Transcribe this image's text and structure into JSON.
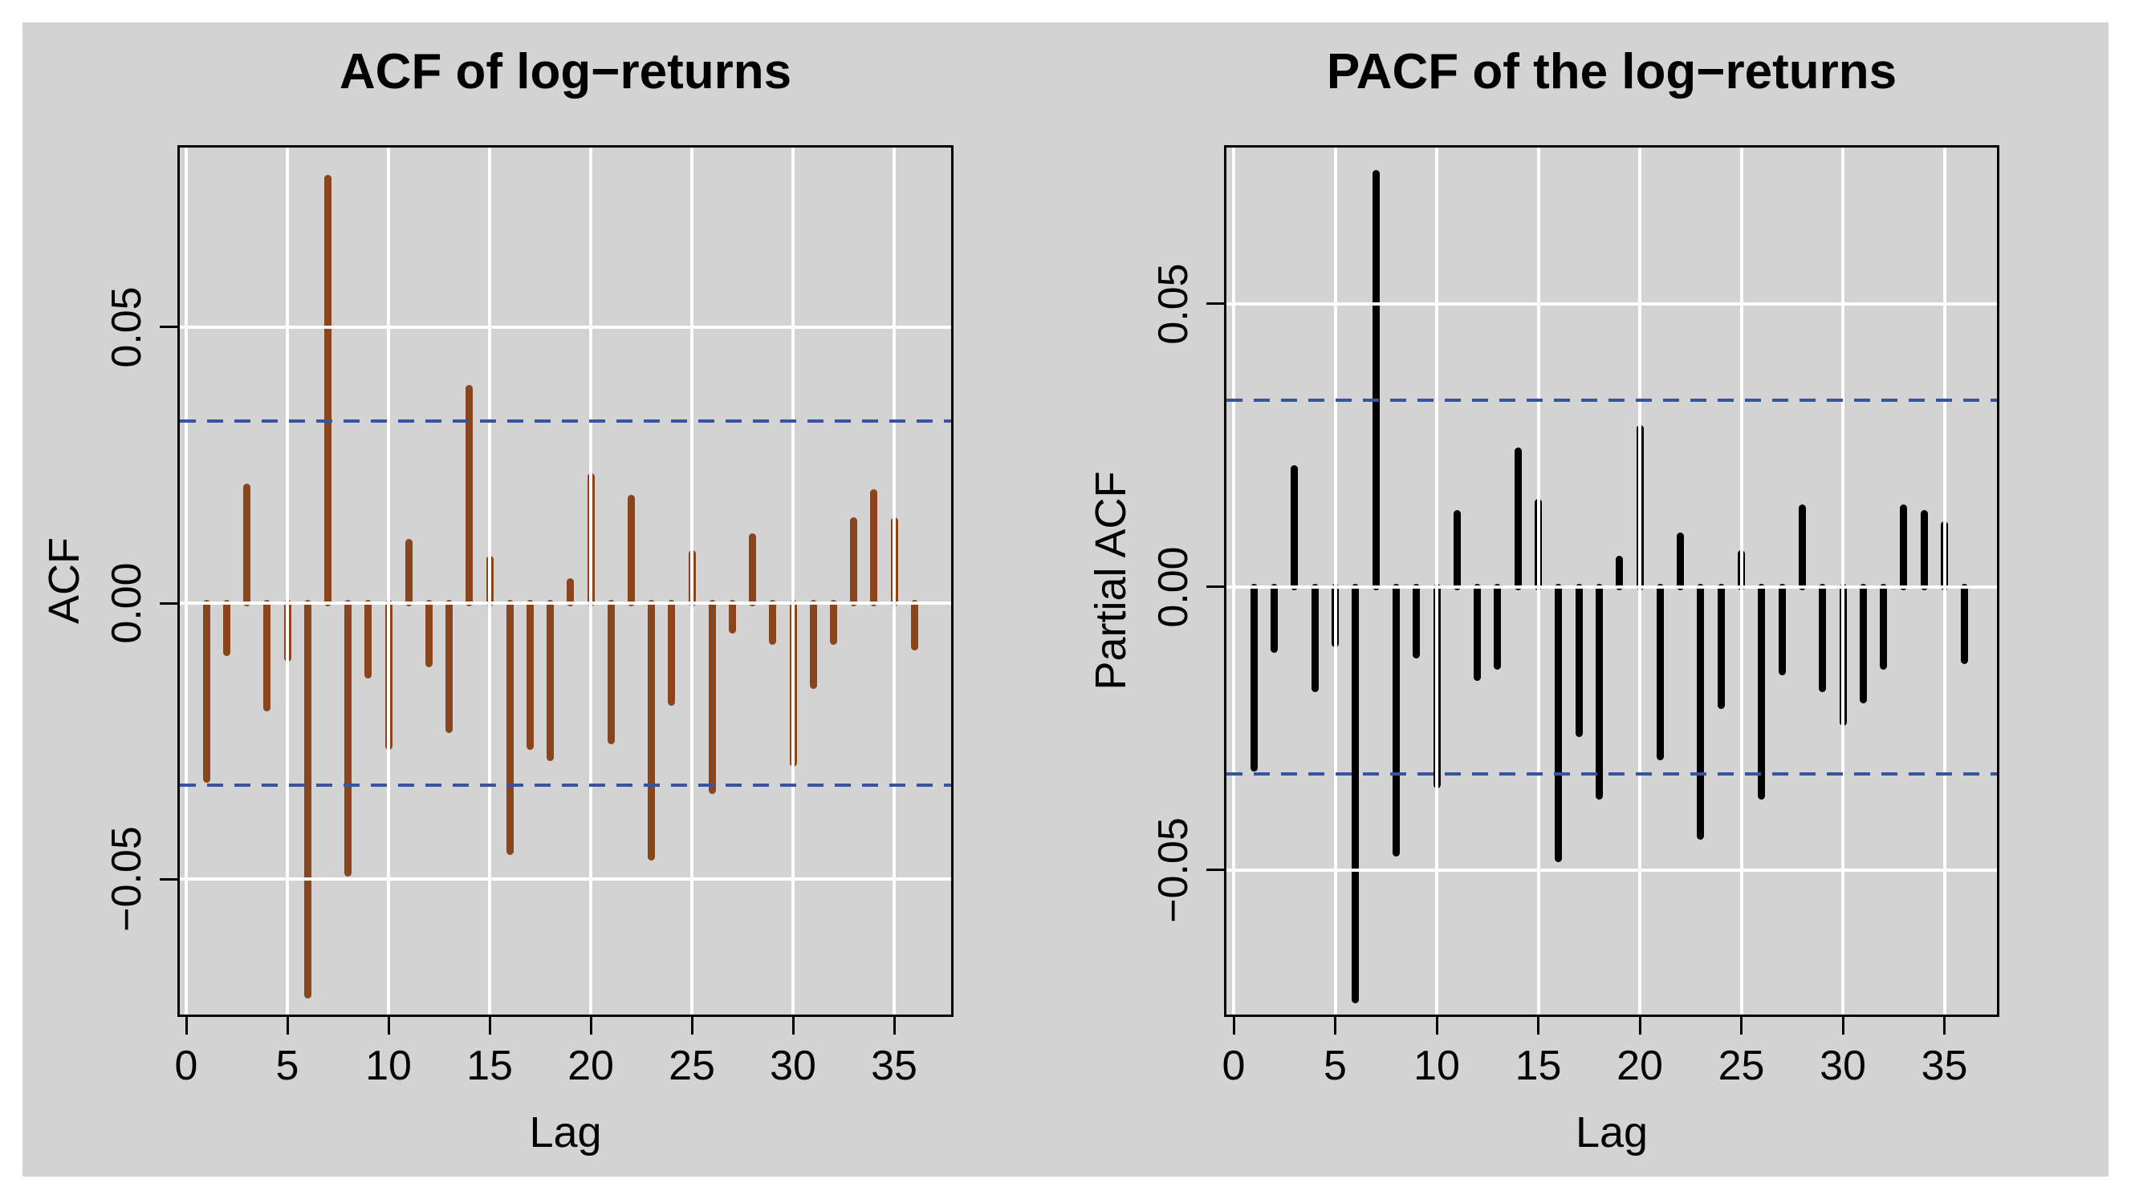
{
  "page": {
    "background": "#ffffff",
    "panel_background": "#d3d3d3",
    "grid_color": "#ffffff",
    "axis_color": "#000000"
  },
  "chart_data": [
    {
      "type": "bar",
      "title": "ACF of log−returns",
      "xlabel": "Lag",
      "ylabel": "ACF",
      "bar_color": "#8A451C",
      "ci_color": "#39549E",
      "grid": true,
      "legend": "none",
      "xlim": [
        -0.3,
        37.8
      ],
      "ylim": [
        -0.0745,
        0.0825
      ],
      "xticks": [
        0,
        5,
        10,
        15,
        20,
        25,
        30,
        35
      ],
      "xtick_labels": [
        "0",
        "5",
        "10",
        "15",
        "20",
        "25",
        "30",
        "35"
      ],
      "yticks": [
        0.05,
        0,
        -0.05
      ],
      "ytick_labels": [
        "0.05",
        "0.00",
        "−0.05"
      ],
      "conf_bands": [
        0.033,
        -0.033
      ],
      "x": [
        1,
        2,
        3,
        4,
        5,
        6,
        7,
        8,
        9,
        10,
        11,
        12,
        13,
        14,
        15,
        16,
        17,
        18,
        19,
        20,
        21,
        22,
        23,
        24,
        25,
        26,
        27,
        28,
        29,
        30,
        31,
        32,
        33,
        34,
        35,
        36
      ],
      "values": [
        -0.032,
        -0.009,
        0.021,
        -0.019,
        -0.01,
        -0.071,
        0.077,
        -0.049,
        -0.013,
        -0.026,
        0.011,
        -0.011,
        -0.023,
        0.039,
        0.008,
        -0.045,
        -0.026,
        -0.028,
        0.004,
        0.023,
        -0.025,
        0.019,
        -0.046,
        -0.018,
        0.009,
        -0.034,
        -0.005,
        0.012,
        -0.007,
        -0.029,
        -0.015,
        -0.007,
        0.015,
        0.02,
        0.015,
        -0.008
      ]
    },
    {
      "type": "bar",
      "title": "PACF of the log−returns",
      "xlabel": "Lag",
      "ylabel": "Partial ACF",
      "bar_color": "#000000",
      "ci_color": "#39549E",
      "grid": true,
      "legend": "none",
      "xlim": [
        -0.3,
        37.8
      ],
      "ylim": [
        -0.0755,
        0.0776
      ],
      "xticks": [
        0,
        5,
        10,
        15,
        20,
        25,
        30,
        35
      ],
      "xtick_labels": [
        "0",
        "5",
        "10",
        "15",
        "20",
        "25",
        "30",
        "35"
      ],
      "yticks": [
        0.05,
        0,
        -0.05
      ],
      "ytick_labels": [
        "0.05",
        "0.00",
        "−0.05"
      ],
      "conf_bands": [
        0.033,
        -0.033
      ],
      "x": [
        1,
        2,
        3,
        4,
        5,
        6,
        7,
        8,
        9,
        10,
        11,
        12,
        13,
        14,
        15,
        16,
        17,
        18,
        19,
        20,
        21,
        22,
        23,
        24,
        25,
        26,
        27,
        28,
        29,
        30,
        31,
        32,
        33,
        34,
        35,
        36
      ],
      "values": [
        -0.032,
        -0.011,
        0.021,
        -0.018,
        -0.01,
        -0.073,
        0.073,
        -0.047,
        -0.012,
        -0.035,
        0.013,
        -0.016,
        -0.014,
        0.024,
        0.015,
        -0.048,
        -0.026,
        -0.037,
        0.005,
        0.028,
        -0.03,
        0.009,
        -0.044,
        -0.021,
        0.006,
        -0.037,
        -0.015,
        0.014,
        -0.018,
        -0.024,
        -0.02,
        -0.014,
        0.014,
        0.013,
        0.011,
        -0.013
      ]
    }
  ]
}
